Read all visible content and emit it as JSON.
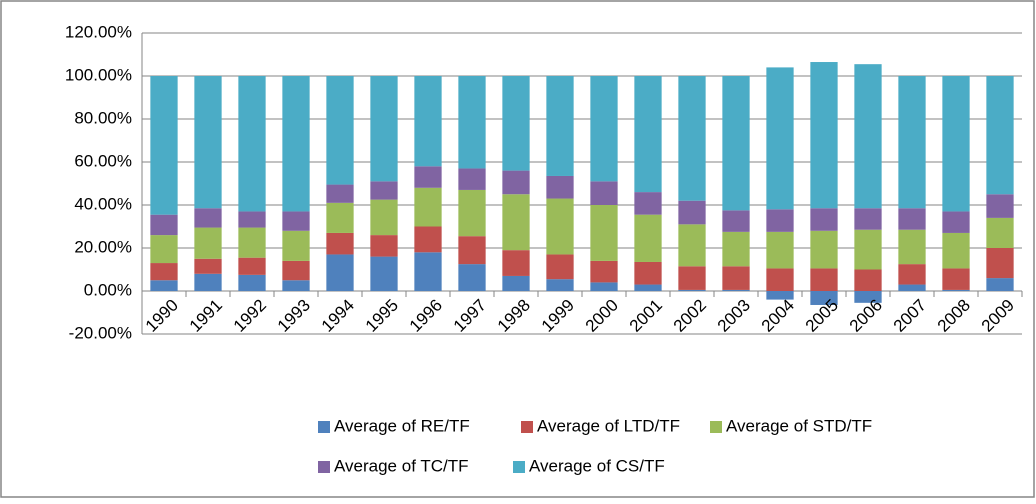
{
  "chart_data": {
    "type": "stacked_bar",
    "categories": [
      "1990",
      "1991",
      "1992",
      "1993",
      "1994",
      "1995",
      "1996",
      "1997",
      "1998",
      "1999",
      "2000",
      "2001",
      "2002",
      "2003",
      "2004",
      "2005",
      "2006",
      "2007",
      "2008",
      "2009"
    ],
    "series": [
      {
        "name": "Average of RE/TF",
        "color": "#4f81bd",
        "values": [
          5,
          8,
          7.5,
          5,
          17,
          16,
          18,
          12.5,
          7,
          5.5,
          4,
          3,
          0.5,
          0.5,
          -4,
          -6.5,
          -5.5,
          3,
          0.5,
          6
        ]
      },
      {
        "name": "Average of LTD/TF",
        "color": "#c0504d",
        "values": [
          8,
          7,
          8,
          9,
          10,
          10,
          12,
          13,
          12,
          11.5,
          10,
          10.5,
          11,
          11,
          10.5,
          10.5,
          10,
          9.5,
          10,
          14
        ]
      },
      {
        "name": "Average of STD/TF",
        "color": "#9bbb59",
        "values": [
          13,
          14.5,
          14,
          14,
          14,
          16.5,
          18,
          21.5,
          26,
          26,
          26,
          22,
          19.5,
          16,
          17,
          17.5,
          18.5,
          16,
          16.5,
          14
        ]
      },
      {
        "name": "Average of TC/TF",
        "color": "#8064a2",
        "values": [
          9.5,
          9,
          7.5,
          9,
          8.5,
          8.5,
          10,
          10,
          11,
          10.5,
          11,
          10.5,
          11,
          10,
          10.5,
          10.5,
          10,
          10,
          10,
          11
        ]
      },
      {
        "name": "Average of CS/TF",
        "color": "#4bacc6",
        "values": [
          64.5,
          61.5,
          63,
          63,
          50.5,
          49,
          42,
          43,
          44,
          46.5,
          49,
          54,
          58,
          62.5,
          66,
          68,
          67,
          61.5,
          63,
          55
        ]
      }
    ],
    "ylim": [
      -20,
      120
    ],
    "yticks": [
      {
        "value": -20,
        "label": "-20.00%"
      },
      {
        "value": 0,
        "label": "0.00%"
      },
      {
        "value": 20,
        "label": "20.00%"
      },
      {
        "value": 40,
        "label": "40.00%"
      },
      {
        "value": 60,
        "label": "60.00%"
      },
      {
        "value": 80,
        "label": "80.00%"
      },
      {
        "value": 100,
        "label": "100.00%"
      },
      {
        "value": 120,
        "label": "120.00%"
      }
    ],
    "grid": true,
    "legend": "bottom"
  }
}
